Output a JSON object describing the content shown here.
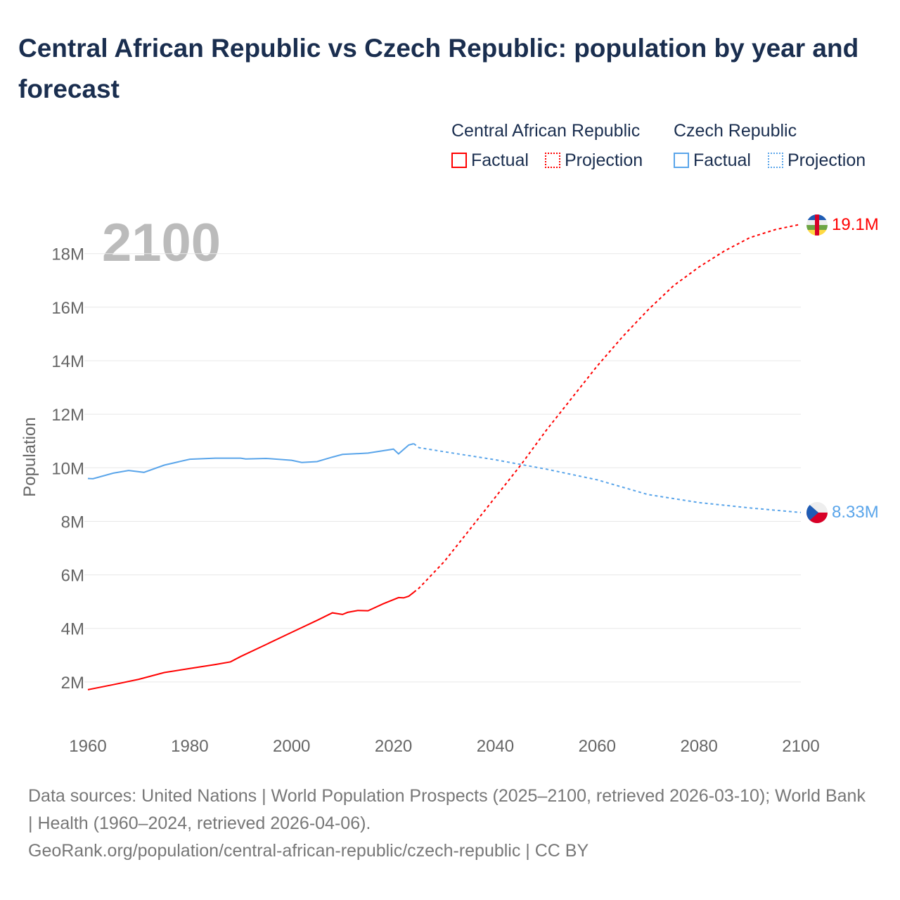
{
  "title": "Central African Republic vs Czech Republic: population by year and forecast",
  "legend": {
    "groups": [
      {
        "name": "Central African Republic",
        "factual": "Factual",
        "projection": "Projection",
        "color": "#ff0000"
      },
      {
        "name": "Czech Republic",
        "factual": "Factual",
        "projection": "Projection",
        "color": "#5aa5ea"
      }
    ]
  },
  "year_label": "2100",
  "footer": {
    "line1": "Data sources: United Nations | World Population Prospects (2025–2100, retrieved 2026-03-10); World Bank | Health (1960–2024, retrieved 2026-04-06).",
    "line2": "GeoRank.org/population/central-african-republic/czech-republic | CC BY"
  },
  "chart_data": {
    "type": "line",
    "title": "Central African Republic vs Czech Republic: population by year and forecast",
    "xlabel": "",
    "ylabel": "Population",
    "xlim": [
      1960,
      2100
    ],
    "ylim": [
      0,
      19.6
    ],
    "x_ticks": [
      1960,
      1980,
      2000,
      2020,
      2040,
      2060,
      2080,
      2100
    ],
    "y_ticks": [
      {
        "v": 2,
        "label": "2M"
      },
      {
        "v": 4,
        "label": "4M"
      },
      {
        "v": 6,
        "label": "6M"
      },
      {
        "v": 8,
        "label": "8M"
      },
      {
        "v": 10,
        "label": "10M"
      },
      {
        "v": 12,
        "label": "12M"
      },
      {
        "v": 14,
        "label": "14M"
      },
      {
        "v": 16,
        "label": "16M"
      },
      {
        "v": 18,
        "label": "18M"
      }
    ],
    "grid": true,
    "series": [
      {
        "name": "Central African Republic",
        "color": "#ff0000",
        "end_label": "19.1M",
        "factual": [
          [
            1960,
            1.71
          ],
          [
            1965,
            1.9
          ],
          [
            1970,
            2.1
          ],
          [
            1975,
            2.35
          ],
          [
            1980,
            2.5
          ],
          [
            1985,
            2.65
          ],
          [
            1988,
            2.75
          ],
          [
            1990,
            2.95
          ],
          [
            1995,
            3.4
          ],
          [
            2000,
            3.85
          ],
          [
            2005,
            4.3
          ],
          [
            2008,
            4.58
          ],
          [
            2010,
            4.52
          ],
          [
            2011,
            4.6
          ],
          [
            2013,
            4.67
          ],
          [
            2015,
            4.66
          ],
          [
            2018,
            4.92
          ],
          [
            2021,
            5.15
          ],
          [
            2022,
            5.14
          ],
          [
            2023,
            5.2
          ],
          [
            2024,
            5.35
          ]
        ],
        "projection": [
          [
            2024,
            5.35
          ],
          [
            2025,
            5.5
          ],
          [
            2030,
            6.5
          ],
          [
            2035,
            7.7
          ],
          [
            2040,
            8.9
          ],
          [
            2045,
            10.1
          ],
          [
            2050,
            11.4
          ],
          [
            2055,
            12.6
          ],
          [
            2060,
            13.8
          ],
          [
            2065,
            14.9
          ],
          [
            2070,
            15.9
          ],
          [
            2075,
            16.8
          ],
          [
            2080,
            17.5
          ],
          [
            2085,
            18.1
          ],
          [
            2090,
            18.6
          ],
          [
            2095,
            18.9
          ],
          [
            2100,
            19.1
          ]
        ]
      },
      {
        "name": "Czech Republic",
        "color": "#5aa5ea",
        "end_label": "8.33M",
        "factual": [
          [
            1960,
            9.6
          ],
          [
            1961,
            9.59
          ],
          [
            1965,
            9.8
          ],
          [
            1968,
            9.9
          ],
          [
            1971,
            9.83
          ],
          [
            1975,
            10.1
          ],
          [
            1980,
            10.32
          ],
          [
            1985,
            10.36
          ],
          [
            1990,
            10.36
          ],
          [
            1991,
            10.33
          ],
          [
            1995,
            10.35
          ],
          [
            2000,
            10.28
          ],
          [
            2002,
            10.2
          ],
          [
            2005,
            10.23
          ],
          [
            2008,
            10.4
          ],
          [
            2010,
            10.5
          ],
          [
            2015,
            10.55
          ],
          [
            2020,
            10.7
          ],
          [
            2021,
            10.52
          ],
          [
            2023,
            10.85
          ],
          [
            2024,
            10.9
          ]
        ],
        "projection": [
          [
            2024,
            10.9
          ],
          [
            2025,
            10.75
          ],
          [
            2030,
            10.6
          ],
          [
            2040,
            10.3
          ],
          [
            2050,
            9.95
          ],
          [
            2060,
            9.55
          ],
          [
            2070,
            9.0
          ],
          [
            2080,
            8.7
          ],
          [
            2090,
            8.5
          ],
          [
            2100,
            8.33
          ]
        ]
      }
    ]
  }
}
